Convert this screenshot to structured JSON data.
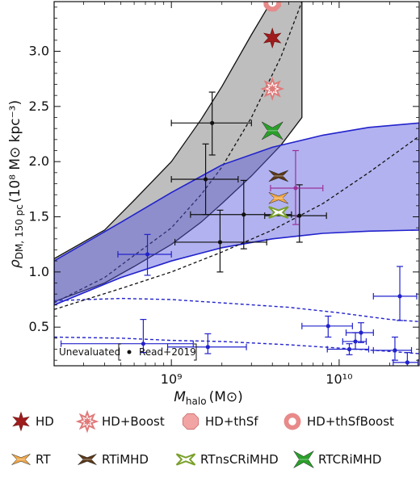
{
  "chart_data": {
    "type": "scatter",
    "xscale": "log",
    "xlim": [
      200000000.0,
      30000000000.0
    ],
    "ylim": [
      0.15,
      3.45
    ],
    "xlabel_main": "M",
    "xlabel_sub": "halo",
    "xlabel_unit": "(M⊙)",
    "ylabel_main": "ρ",
    "ylabel_sub": "DM, 150 pc",
    "ylabel_unit": "(10⁸ M⊙ kpc⁻³)",
    "yticks": [
      0.5,
      1.0,
      1.5,
      2.0,
      2.5,
      3.0
    ],
    "ytick_labels": [
      "0.5",
      "1.0",
      "1.5",
      "2.0",
      "2.5",
      "3.0"
    ],
    "xticks": [
      1000000000.0,
      10000000000.0
    ],
    "xtick_labels": [
      "10⁹",
      "10¹⁰"
    ],
    "inset_legend": {
      "title": "Unevaluated",
      "entry": "Read+2019"
    },
    "gray_band": {
      "color": "#b3b3b3",
      "x": [
        200000000.0,
        400000000.0,
        600000000.0,
        1000000000.0,
        1500000000.0,
        2000000000.0,
        3000000000.0,
        4500000000.0,
        6000000000.0
      ],
      "upper": [
        1.12,
        1.38,
        1.65,
        2.0,
        2.38,
        2.68,
        3.15,
        3.6,
        3.7
      ],
      "lower": [
        0.73,
        0.9,
        1.05,
        1.25,
        1.45,
        1.62,
        1.87,
        2.15,
        2.4
      ],
      "median": [
        0.72,
        0.95,
        1.15,
        1.4,
        1.7,
        1.95,
        2.4,
        2.95,
        3.45
      ]
    },
    "blue_band": {
      "color": "#5555dd",
      "x": [
        200000000.0,
        500000000.0,
        1000000000.0,
        2000000000.0,
        4000000000.0,
        8000000000.0,
        15000000000.0,
        30000000000.0
      ],
      "upper": [
        1.1,
        1.45,
        1.72,
        1.97,
        2.13,
        2.24,
        2.31,
        2.35
      ],
      "lower": [
        0.7,
        0.95,
        1.1,
        1.22,
        1.3,
        1.35,
        1.37,
        1.38
      ],
      "median": [
        0.66,
        0.85,
        1.0,
        1.18,
        1.38,
        1.62,
        1.9,
        2.23
      ]
    },
    "dashed_lower_band": {
      "x": [
        200000000.0,
        500000000.0,
        1000000000.0,
        2000000000.0,
        5000000000.0,
        10000000000.0,
        20000000000.0,
        30000000000.0
      ],
      "upper": [
        0.74,
        0.76,
        0.75,
        0.72,
        0.68,
        0.63,
        0.57,
        0.55
      ],
      "lower": [
        0.41,
        0.4,
        0.38,
        0.37,
        0.34,
        0.31,
        0.28,
        0.26
      ]
    },
    "series": [
      {
        "name": "Read+2019",
        "color": "#111111",
        "points": [
          {
            "x": 1750000000.0,
            "y": 2.35,
            "xlo": 1000000000.0,
            "xhi": 3000000000.0,
            "ylo": 2.06,
            "yhi": 2.63
          },
          {
            "x": 1600000000.0,
            "y": 1.84,
            "xlo": 1000000000.0,
            "xhi": 2500000000.0,
            "ylo": 1.52,
            "yhi": 2.16
          },
          {
            "x": 2700000000.0,
            "y": 1.52,
            "xlo": 1300000000.0,
            "xhi": 5200000000.0,
            "ylo": 1.21,
            "yhi": 1.83
          },
          {
            "x": 1950000000.0,
            "y": 1.27,
            "xlo": 1050000000.0,
            "xhi": 3700000000.0,
            "ylo": 1.0,
            "yhi": 1.56
          },
          {
            "x": 5800000000.0,
            "y": 1.51,
            "xlo": 3600000000.0,
            "xhi": 8400000000.0,
            "ylo": 1.27,
            "yhi": 1.79
          }
        ]
      },
      {
        "name": "blue-points",
        "color": "#2222cc",
        "points": [
          {
            "x": 720000000.0,
            "y": 1.16,
            "xlo": 480000000.0,
            "xhi": 1000000000.0,
            "ylo": 0.97,
            "yhi": 1.34
          },
          {
            "x": 680000000.0,
            "y": 0.35,
            "xlo": 220000000.0,
            "xhi": 1350000000.0,
            "ylo": 0.27,
            "yhi": 0.57
          },
          {
            "x": 1650000000.0,
            "y": 0.32,
            "xlo": 950000000.0,
            "xhi": 2800000000.0,
            "ylo": 0.26,
            "yhi": 0.44
          },
          {
            "x": 8600000000.0,
            "y": 0.51,
            "xlo": 6000000000.0,
            "xhi": 12000000000.0,
            "ylo": 0.41,
            "yhi": 0.6
          },
          {
            "x": 11500000000.0,
            "y": 0.3,
            "xlo": 8500000000.0,
            "xhi": 15000000000.0,
            "ylo": 0.25,
            "yhi": 0.35
          },
          {
            "x": 12500000000.0,
            "y": 0.37,
            "xlo": 10500000000.0,
            "xhi": 14500000000.0,
            "ylo": 0.3,
            "yhi": 0.45
          },
          {
            "x": 13500000000.0,
            "y": 0.45,
            "xlo": 11000000000.0,
            "xhi": 16000000000.0,
            "ylo": 0.36,
            "yhi": 0.54
          },
          {
            "x": 23000000000.0,
            "y": 0.78,
            "xlo": 16000000000.0,
            "xhi": 29000000000.0,
            "ylo": 0.56,
            "yhi": 1.05
          },
          {
            "x": 21500000000.0,
            "y": 0.29,
            "xlo": 16000000000.0,
            "xhi": 27000000000.0,
            "ylo": 0.2,
            "yhi": 0.41
          },
          {
            "x": 25500000000.0,
            "y": 0.18,
            "xlo": 21000000000.0,
            "xhi": 29500000000.0,
            "ylo": 0.13,
            "yhi": 0.27
          }
        ]
      },
      {
        "name": "purple-point",
        "color": "#993399",
        "points": [
          {
            "x": 5500000000.0,
            "y": 1.76,
            "xlo": 3900000000.0,
            "xhi": 8000000000.0,
            "ylo": 1.43,
            "yhi": 2.1
          }
        ]
      }
    ],
    "sim_markers": [
      {
        "label": "HD",
        "kind": "star",
        "color": "#a01c1c",
        "x": 4000000000.0,
        "y": 3.12
      },
      {
        "label": "HD+Boost",
        "kind": "star-open",
        "color": "#e07a7a",
        "x": 4000000000.0,
        "y": 2.66
      },
      {
        "label": "HD+thSf",
        "kind": "octagon",
        "color": "#f2a4a4",
        "x": 4000000000.0,
        "y": 3.44
      },
      {
        "label": "HD+thSfBoost",
        "kind": "ring",
        "color": "#e88a8a",
        "x": 4000000000.0,
        "y": 3.44
      },
      {
        "label": "RT",
        "kind": "bowtie",
        "color": "#f0a848",
        "x": 4350000000.0,
        "y": 1.67
      },
      {
        "label": "RTiMHD",
        "kind": "bowtie",
        "color": "#5a3818",
        "x": 4350000000.0,
        "y": 1.87
      },
      {
        "label": "RTnsCRiMHD",
        "kind": "bowtie-open",
        "color": "#7aa02a",
        "x": 4350000000.0,
        "y": 1.54
      },
      {
        "label": "RTCRiMHD",
        "kind": "bowtie-big",
        "color": "#2aa02a",
        "x": 4000000000.0,
        "y": 2.28
      }
    ]
  },
  "legend": {
    "row1": [
      {
        "label": "HD",
        "kind": "star",
        "color": "#a01c1c"
      },
      {
        "label": "HD+Boost",
        "kind": "star-open",
        "color": "#e07a7a"
      },
      {
        "label": "HD+thSf",
        "kind": "octagon",
        "color": "#f2a4a4"
      },
      {
        "label": "HD+thSfBoost",
        "kind": "ring",
        "color": "#e88a8a"
      }
    ],
    "row2": [
      {
        "label": "RT",
        "kind": "bowtie",
        "color": "#f0a848"
      },
      {
        "label": "RTiMHD",
        "kind": "bowtie",
        "color": "#5a3818"
      },
      {
        "label": "RTnsCRiMHD",
        "kind": "bowtie-open",
        "color": "#7aa02a"
      },
      {
        "label": "RTCRiMHD",
        "kind": "bowtie-big",
        "color": "#2aa02a"
      }
    ]
  }
}
